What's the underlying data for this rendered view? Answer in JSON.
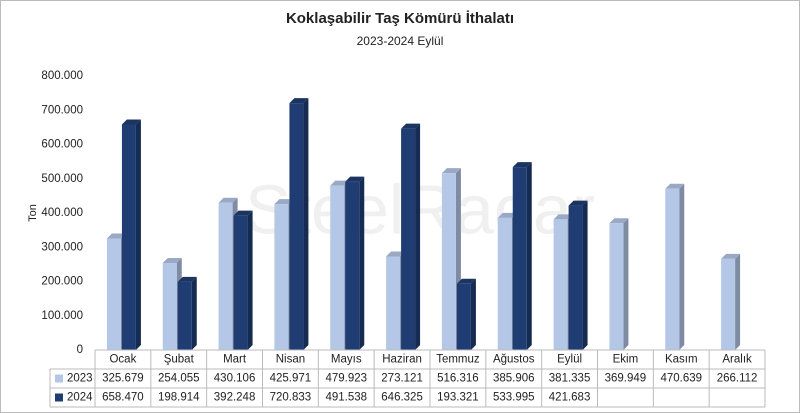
{
  "chart_data": {
    "type": "bar3d",
    "title": "Koklaşabilir Taş Kömürü İthalatı",
    "subtitle": "2023-2024 Eylül",
    "y_label": "Ton",
    "watermark": "SteelRadar",
    "categories": [
      "Ocak",
      "Şubat",
      "Mart",
      "Nisan",
      "Mayıs",
      "Haziran",
      "Temmuz",
      "Ağustos",
      "Eylül",
      "Ekim",
      "Kasım",
      "Aralık"
    ],
    "series": [
      {
        "name": "2023",
        "color": "#b4c7e7",
        "values": [
          325679,
          254055,
          430106,
          425971,
          479923,
          273121,
          516316,
          385906,
          381335,
          369949,
          470639,
          266112
        ],
        "value_labels": [
          "325.679",
          "254.055",
          "430.106",
          "425.971",
          "479.923",
          "273.121",
          "516.316",
          "385.906",
          "381.335",
          "369.949",
          "470.639",
          "266.112"
        ]
      },
      {
        "name": "2024",
        "color": "#203d73",
        "values": [
          658470,
          198914,
          392248,
          720833,
          491538,
          646325,
          193321,
          533995,
          421683,
          null,
          null,
          null
        ],
        "value_labels": [
          "658.470",
          "198.914",
          "392.248",
          "720.833",
          "491.538",
          "646.325",
          "193.321",
          "533.995",
          "421.683",
          null,
          null,
          null
        ]
      }
    ],
    "ylim": [
      0,
      800000
    ],
    "yticks": [
      0,
      {
        "value": 100000,
        "label": "100.000"
      },
      {
        "value": 200000,
        "label": "200.000"
      },
      {
        "value": 300000,
        "label": "300.000"
      },
      {
        "value": 400000,
        "label": "400.000"
      },
      {
        "value": 500000,
        "label": "500.000"
      },
      {
        "value": 600000,
        "label": "600.000"
      },
      {
        "value": 700000,
        "label": "700.000"
      },
      {
        "value": 800000,
        "label": "800.000"
      }
    ],
    "grid": false
  }
}
